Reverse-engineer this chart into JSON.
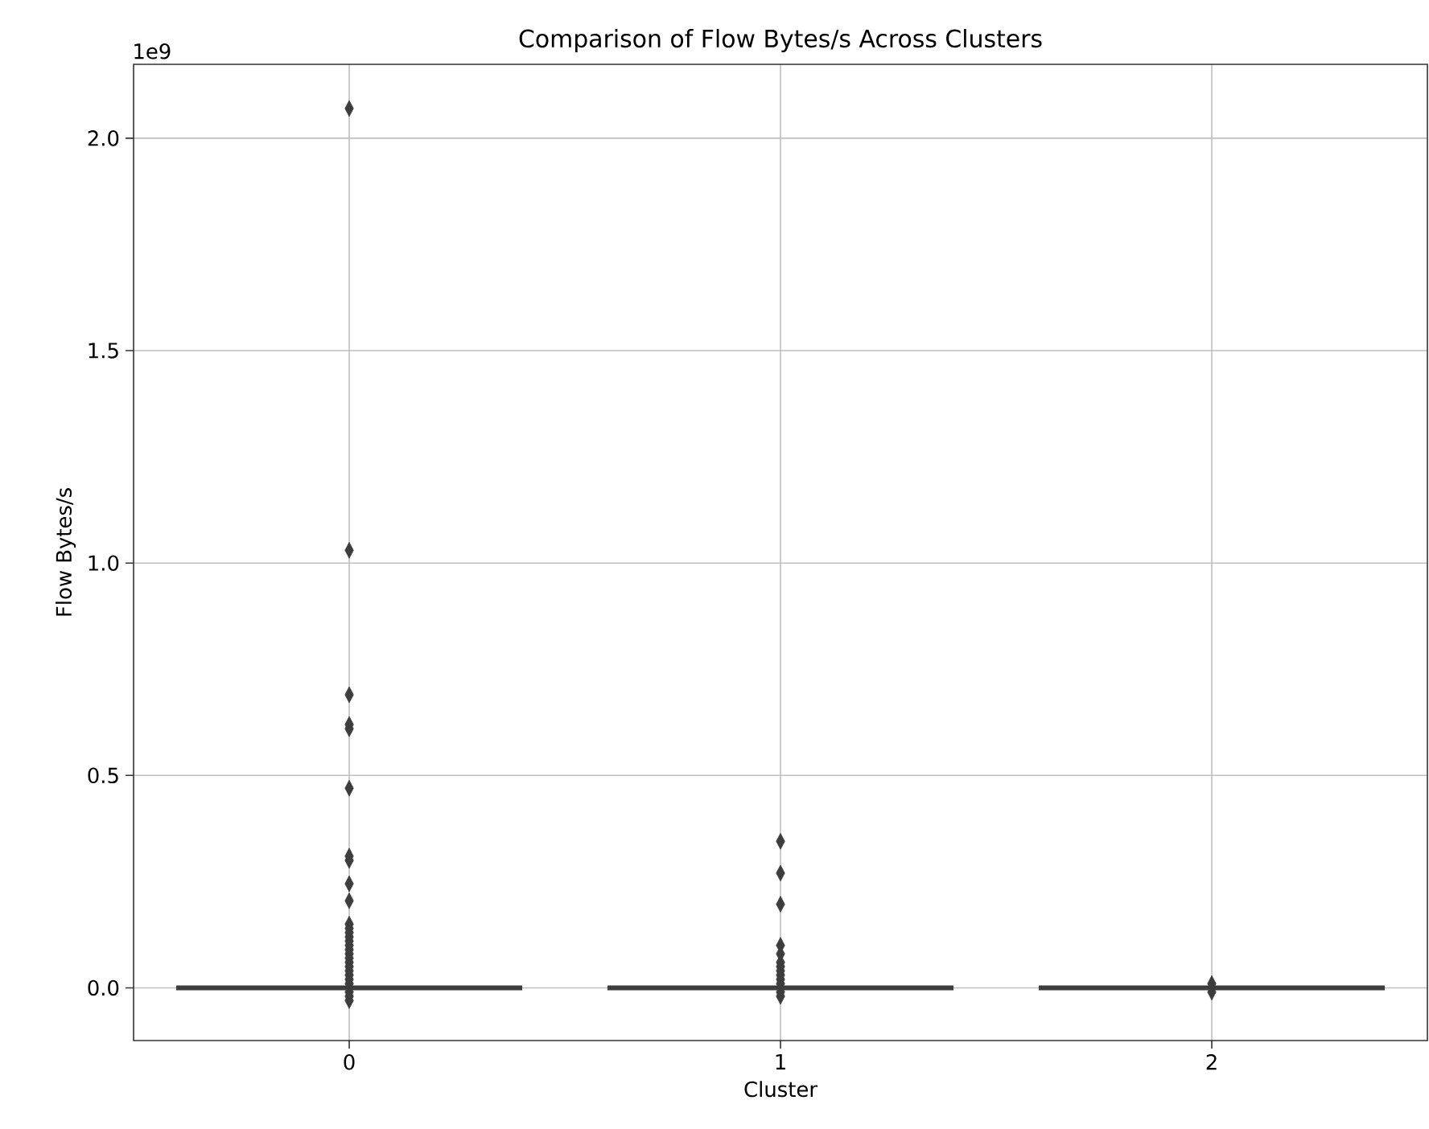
{
  "chart_data": {
    "type": "box",
    "title": "Comparison of Flow Bytes/s Across Clusters",
    "xlabel": "Cluster",
    "ylabel": "Flow Bytes/s",
    "annotations": [
      "1e9"
    ],
    "categories": [
      "0",
      "1",
      "2"
    ],
    "ylim": [
      -0.124,
      2.174
    ],
    "yticks": [
      {
        "value": 0,
        "label": "0.0"
      },
      {
        "value": 0.5,
        "label": "0.5"
      },
      {
        "value": 1.0,
        "label": "1.0"
      },
      {
        "value": 1.5,
        "label": "1.5"
      },
      {
        "value": 2.0,
        "label": "2.0"
      }
    ],
    "grid": true,
    "marker": "diamond",
    "series": [
      {
        "color": "#3d3d3d",
        "boxes": [
          {
            "low": 0,
            "q1": 0,
            "median": 0,
            "q3": 0,
            "high": 0,
            "outliers": [
              2.07,
              1.03,
              0.69,
              0.62,
              0.61,
              0.47,
              0.31,
              0.3,
              0.245,
              0.205,
              0.15,
              0.14,
              0.13,
              0.12,
              0.11,
              0.1,
              0.09,
              0.08,
              0.07,
              0.06,
              0.05,
              0.04,
              0.03,
              0.02,
              0.01,
              -0.01,
              -0.02,
              -0.03
            ]
          },
          {
            "low": 0,
            "q1": 0,
            "median": 0,
            "q3": 0,
            "high": 0,
            "outliers": [
              0.345,
              0.27,
              0.197,
              0.1,
              0.08,
              0.06,
              0.05,
              0.04,
              0.03,
              0.02,
              0.01,
              -0.01,
              -0.02
            ]
          },
          {
            "low": 0,
            "q1": 0,
            "median": 0,
            "q3": 0,
            "high": 0,
            "outliers": [
              0.01,
              -0.01
            ]
          }
        ]
      }
    ]
  }
}
